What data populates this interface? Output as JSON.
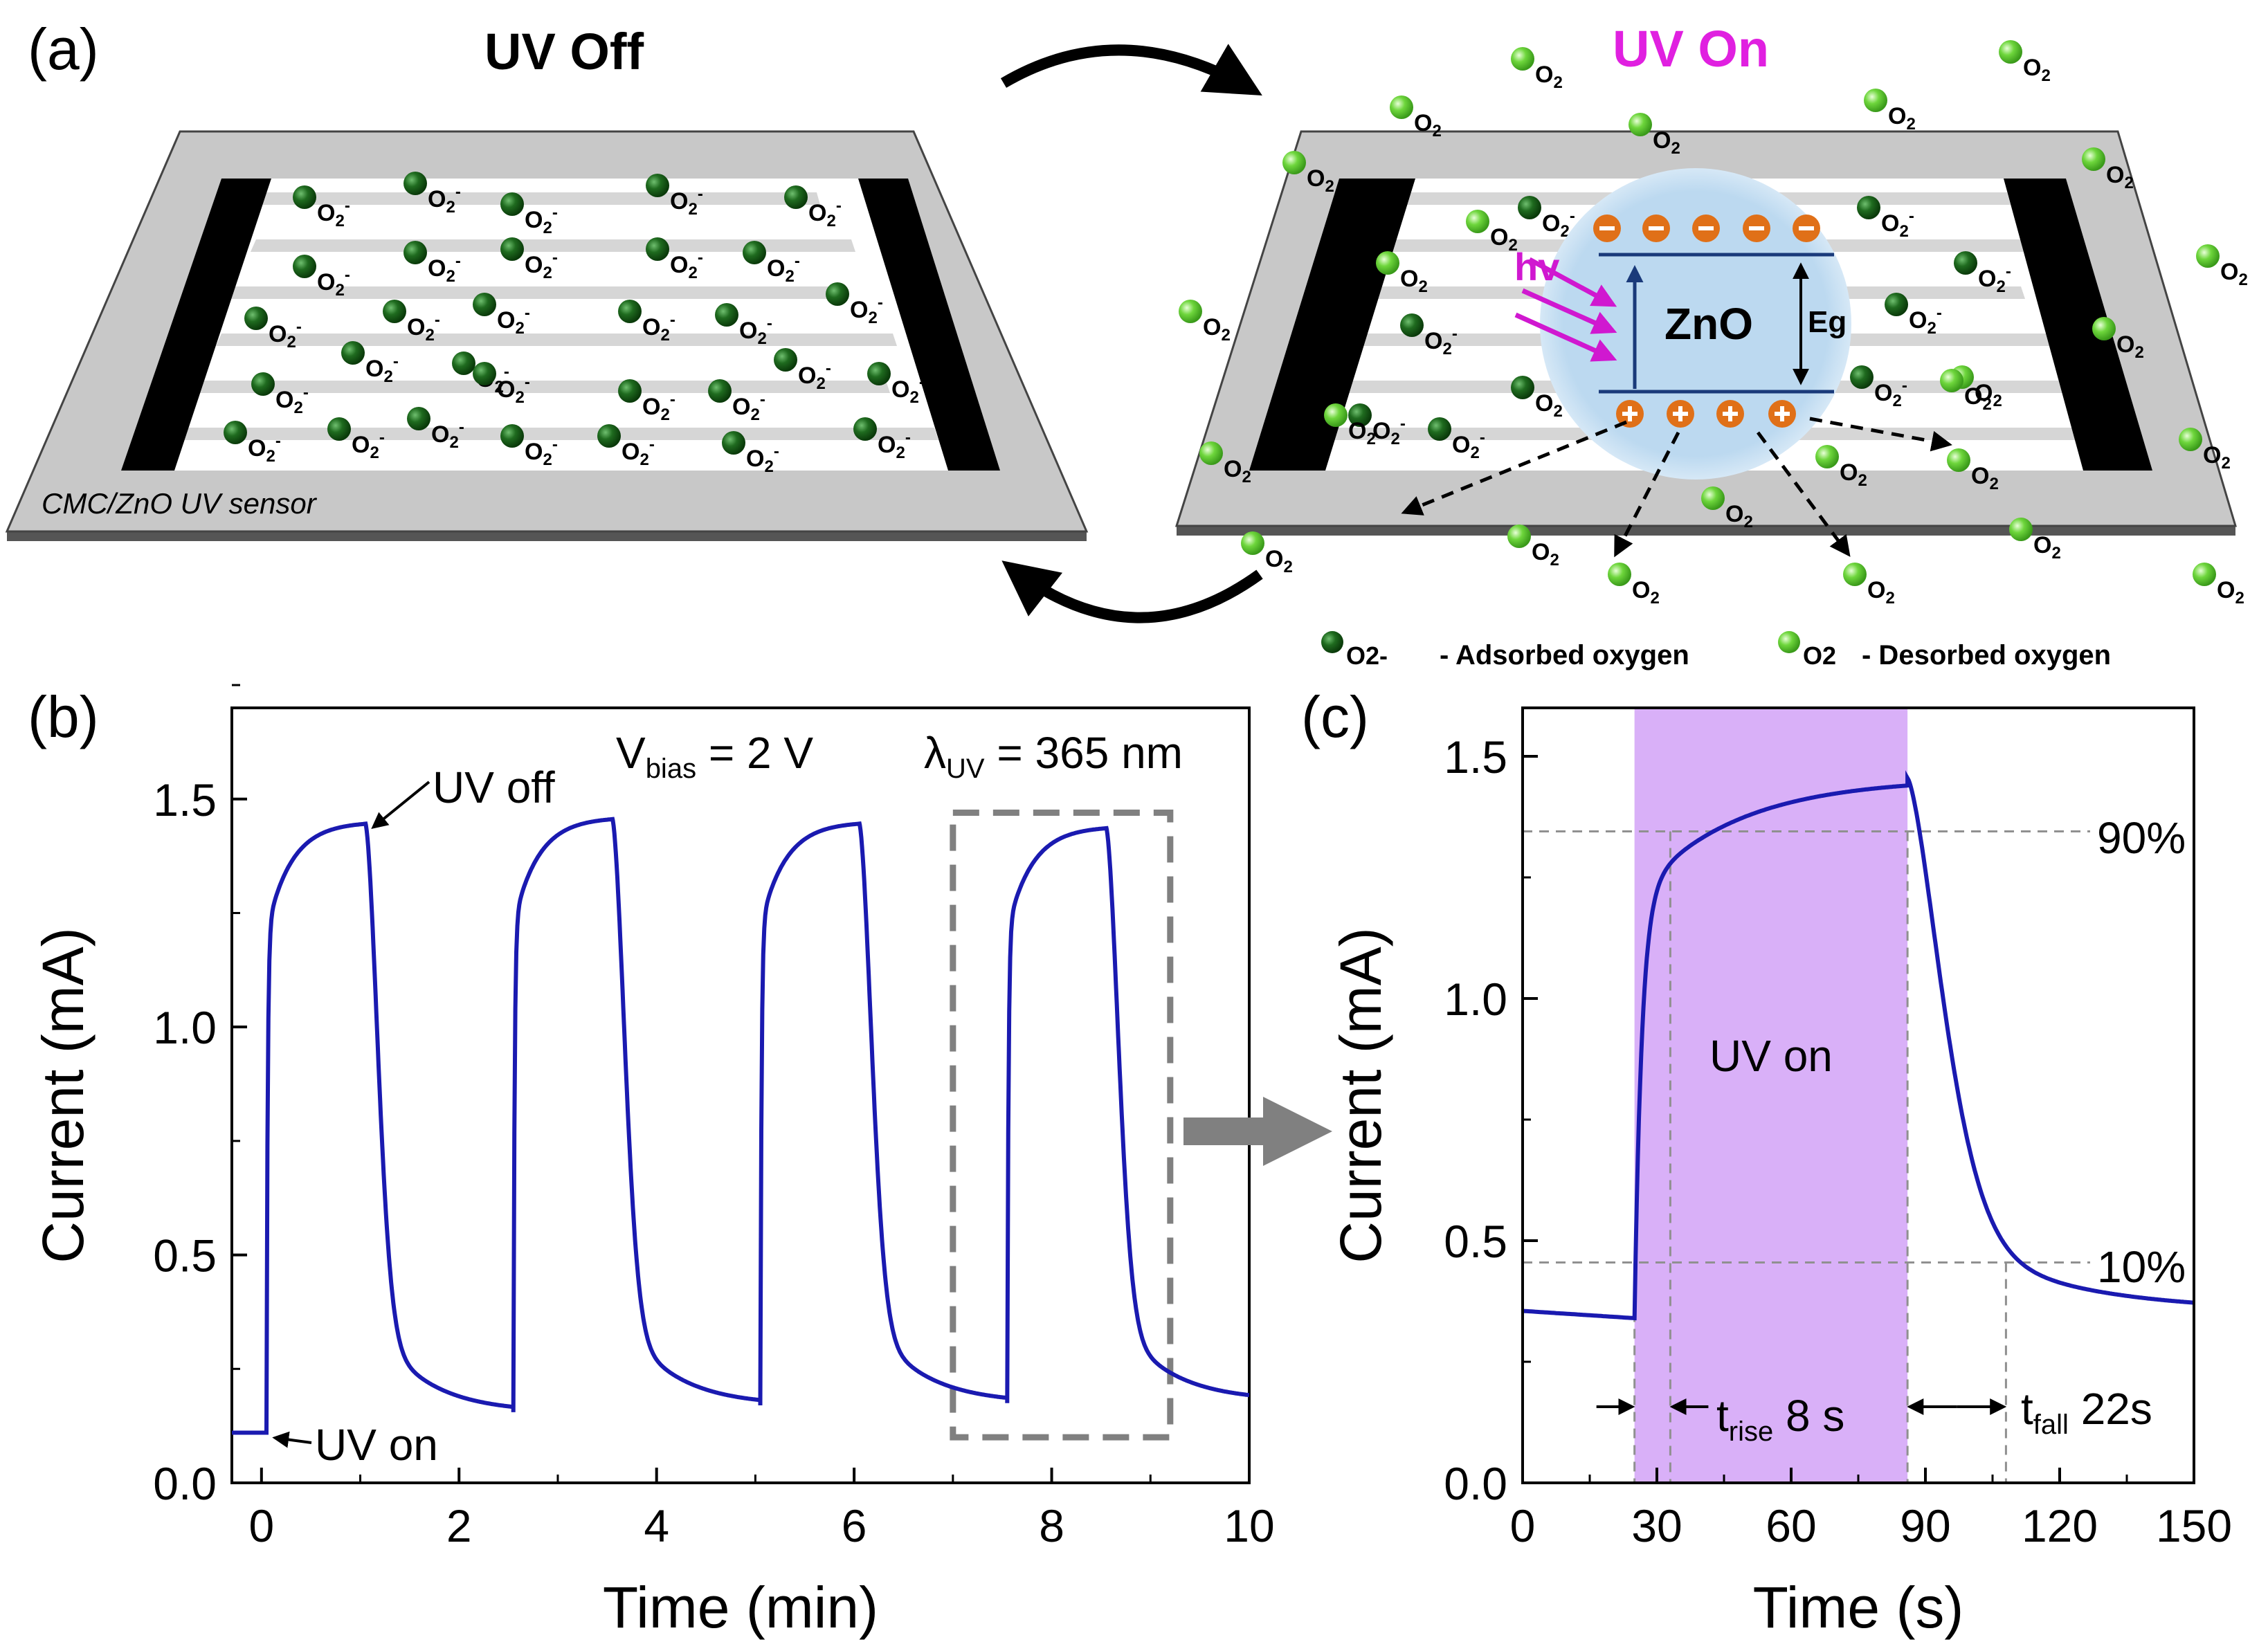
{
  "panel_a": {
    "label": "(a)",
    "uv_off_title": "UV Off",
    "uv_on_title": "UV On",
    "sensor_label": "CMC/ZnO UV sensor",
    "adsorbed_species": "O2-",
    "desorbed_species": "O2",
    "semiconductor": "ZnO",
    "photon": "hv",
    "bandgap": "Eg",
    "legend_adsorbed": "- Adsorbed oxygen",
    "legend_desorbed": "- Desorbed oxygen",
    "colors": {
      "adsorbed_dot": "#1f6b1f",
      "desorbed_dot": "#6ed63c",
      "uv_on_title": "#e020e0",
      "photon": "#d018d0",
      "zno_bubble": "#bcd9f0",
      "carrier": "#e07018",
      "sensor_frame": "#c8c8c8",
      "electrode": "#000000"
    }
  },
  "panel_b": {
    "label": "(b)",
    "bias_label": "V_bias = 2 V",
    "wavelength_label": "λ_UV = 365 nm",
    "uv_off_annotation": "UV off",
    "uv_on_annotation": "UV on",
    "line_color": "#1a1ab0"
  },
  "panel_c": {
    "label": "(c)",
    "uv_on_region": "UV on",
    "level_90": "90%",
    "level_10": "10%",
    "t_rise_label": "t_rise 8 s",
    "t_fall_label": "t_fall 22s",
    "shade_color": "#d9b0f8",
    "line_color": "#1a1ab0"
  },
  "chart_data": [
    {
      "type": "line",
      "title": "",
      "xlabel": "Time (min)",
      "ylabel": "Current (mA)",
      "xlim": [
        -0.3,
        10
      ],
      "ylim": [
        0,
        1.7
      ],
      "xticks": [
        0,
        2,
        4,
        6,
        8,
        10
      ],
      "yticks": [
        0.0,
        0.5,
        1.0,
        1.5
      ],
      "xtick_labels": [
        "0",
        "2",
        "4",
        "6",
        "8",
        "10"
      ],
      "ytick_labels": [
        "0.0",
        "0.5",
        "1.0",
        "1.5"
      ],
      "cycles": [
        {
          "on": 0.05,
          "off": 1.05,
          "peak": 1.45,
          "base_before": 0.11,
          "end": 0.155
        },
        {
          "on": 2.55,
          "off": 3.55,
          "peak": 1.46,
          "base_before": 0.155,
          "end": 0.17
        },
        {
          "on": 5.05,
          "off": 6.05,
          "peak": 1.45,
          "base_before": 0.17,
          "end": 0.175
        },
        {
          "on": 7.55,
          "off": 8.55,
          "peak": 1.44,
          "base_before": 0.175,
          "end": 0.18
        }
      ],
      "highlight_box": {
        "x": [
          7.0,
          9.2
        ],
        "y": [
          0.1,
          1.47
        ]
      }
    },
    {
      "type": "line",
      "title": "",
      "xlabel": "Time (s)",
      "ylabel": "Current (mA)",
      "xlim": [
        0,
        150
      ],
      "ylim": [
        0,
        1.6
      ],
      "xticks": [
        0,
        30,
        60,
        90,
        120,
        150
      ],
      "yticks": [
        0.0,
        0.5,
        1.0,
        1.5
      ],
      "xtick_labels": [
        "0",
        "30",
        "60",
        "90",
        "120",
        "150"
      ],
      "ytick_labels": [
        "0.0",
        "0.5",
        "1.0",
        "1.5"
      ],
      "uv_on_interval": [
        25,
        86
      ],
      "level_90_value": 1.345,
      "level_10_value": 0.455,
      "t_rise_markers": [
        25,
        33
      ],
      "t_fall_markers": [
        86,
        108
      ],
      "baseline_start": 0.355,
      "baseline_before_on": 0.34,
      "peak": 1.455,
      "end_value": 0.355
    }
  ]
}
